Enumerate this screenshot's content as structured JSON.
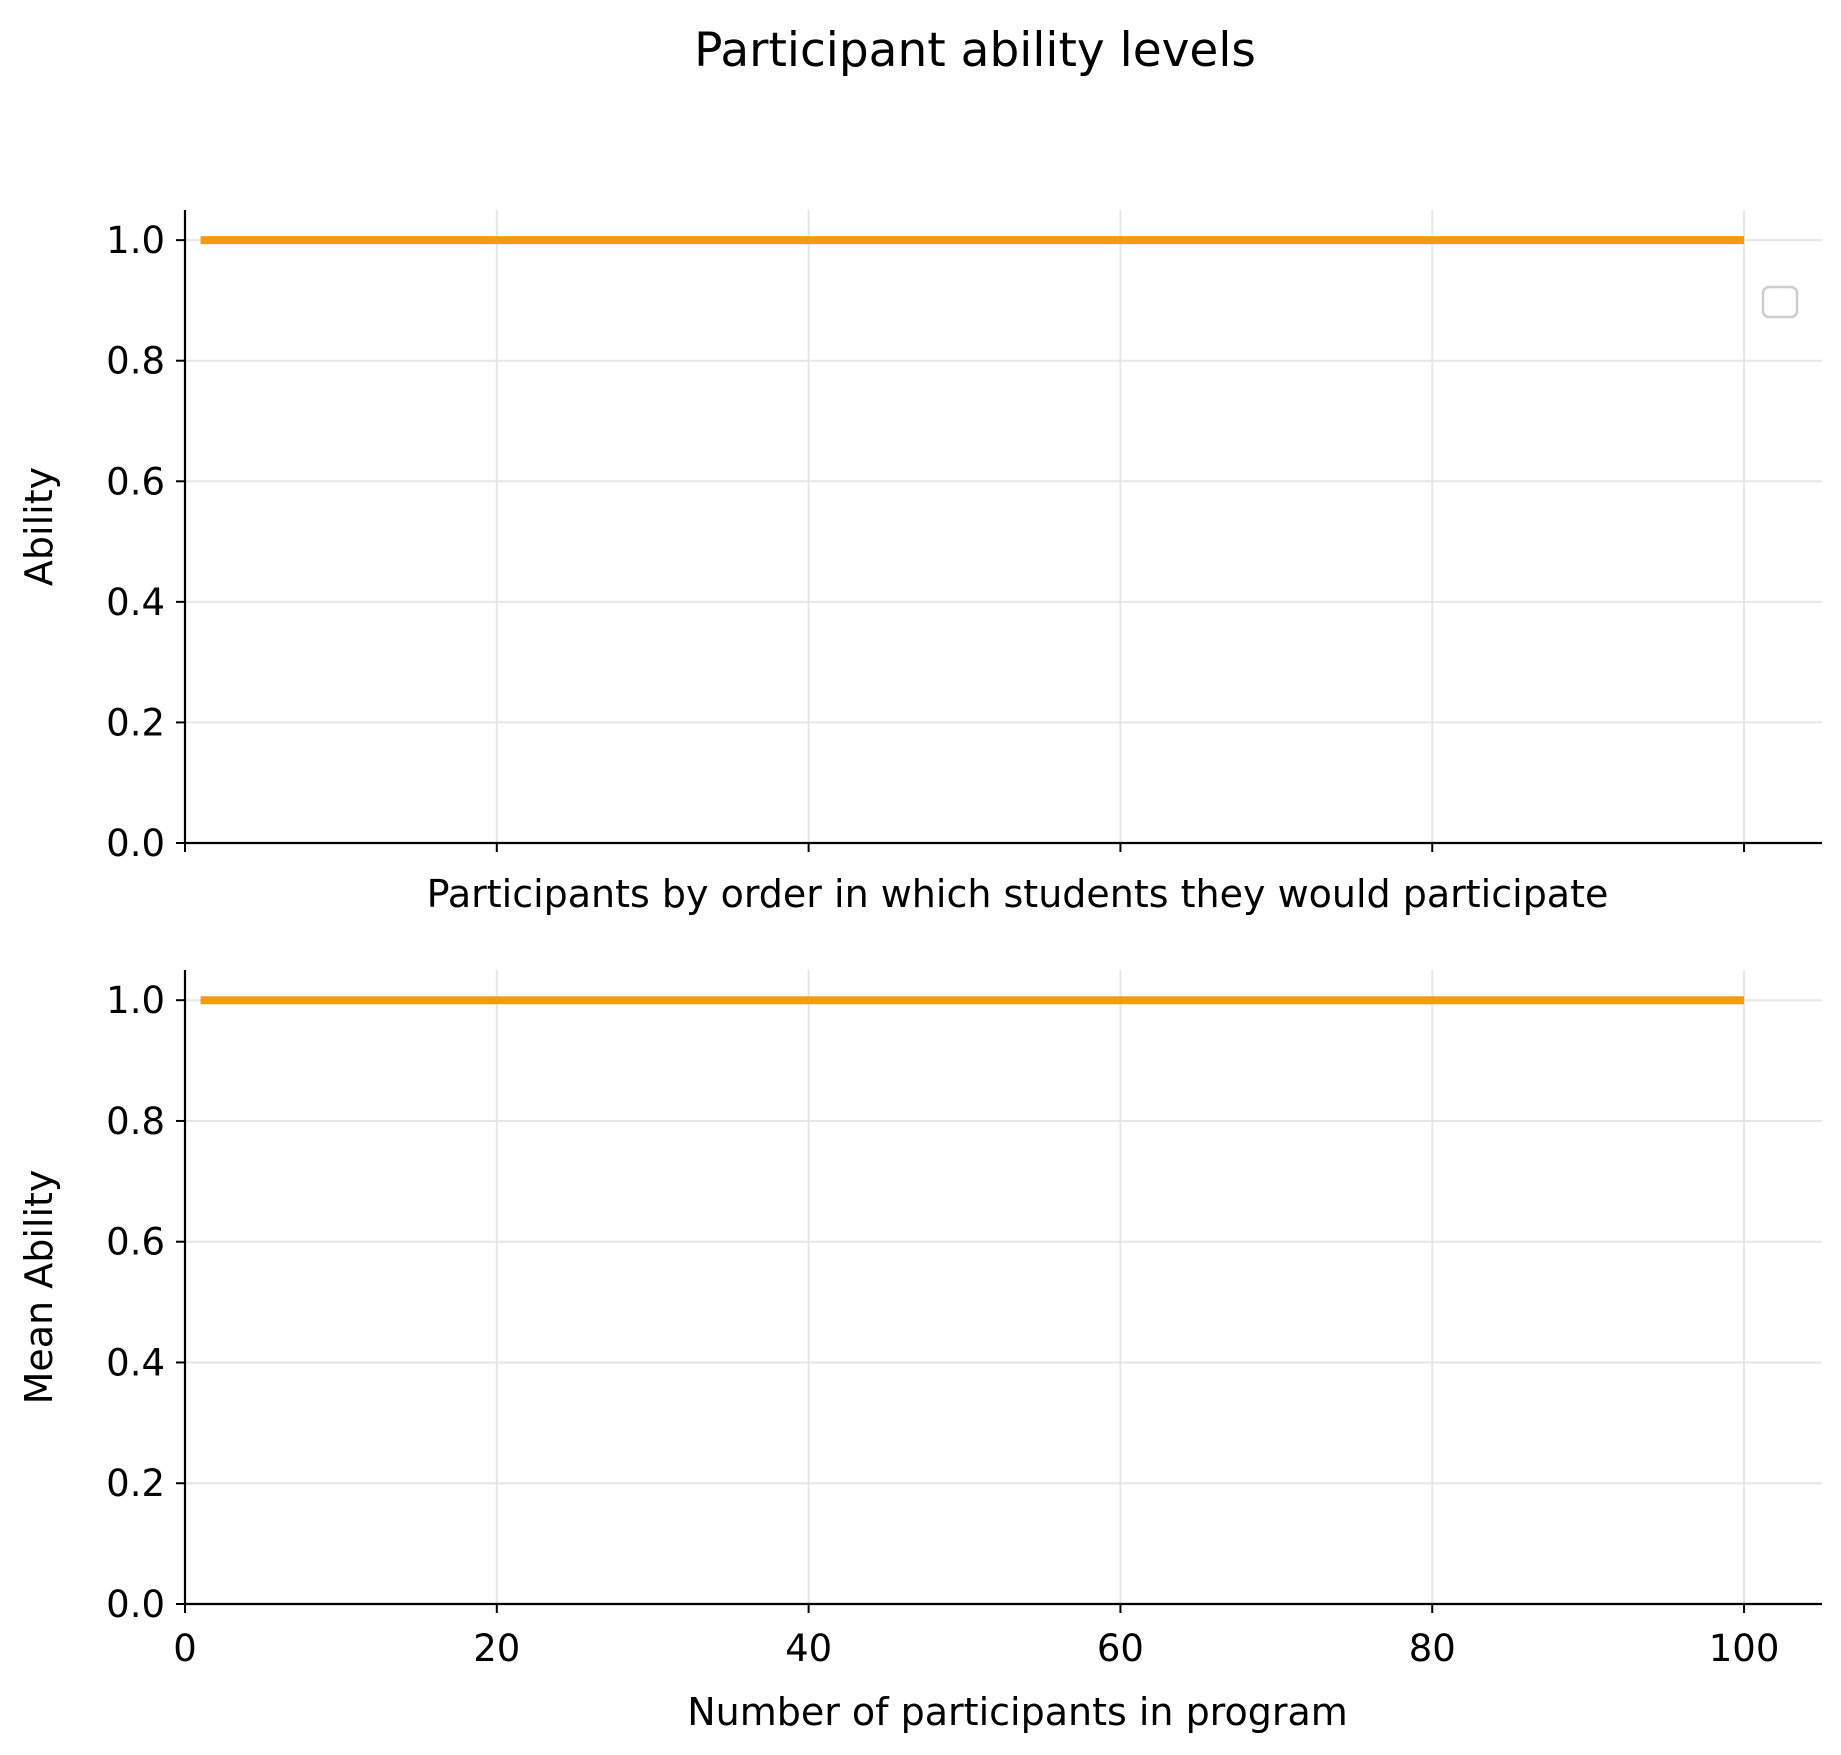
{
  "figure": {
    "title": "Participant ability levels"
  },
  "colors": {
    "series": "#f39c12",
    "axis": "#000000",
    "grid": "#e6e6e6",
    "legend_border": "#cccccc"
  },
  "chart_data": [
    {
      "type": "line",
      "title": "",
      "xlabel": "Participants by order in which students they would participate",
      "ylabel": "Ability",
      "xlim": [
        0,
        105
      ],
      "ylim": [
        0,
        1.05
      ],
      "xticks": [
        0,
        20,
        40,
        60,
        80,
        100
      ],
      "xtick_labels_visible": false,
      "yticks": [
        0.0,
        0.2,
        0.4,
        0.6,
        0.8,
        1.0
      ],
      "ytick_labels": [
        "0.0",
        "0.2",
        "0.4",
        "0.6",
        "0.8",
        "1.0"
      ],
      "grid": true,
      "legend": {
        "placement": "right",
        "entries": []
      },
      "series": [
        {
          "x": [
            1,
            100
          ],
          "y": [
            1.0,
            1.0
          ]
        }
      ]
    },
    {
      "type": "line",
      "title": "",
      "xlabel": "Number of participants in program",
      "ylabel": "Mean Ability",
      "xlim": [
        0,
        105
      ],
      "ylim": [
        0,
        1.05
      ],
      "xticks": [
        0,
        20,
        40,
        60,
        80,
        100
      ],
      "xtick_labels": [
        "0",
        "20",
        "40",
        "60",
        "80",
        "100"
      ],
      "xtick_labels_visible": true,
      "yticks": [
        0.0,
        0.2,
        0.4,
        0.6,
        0.8,
        1.0
      ],
      "ytick_labels": [
        "0.0",
        "0.2",
        "0.4",
        "0.6",
        "0.8",
        "1.0"
      ],
      "grid": true,
      "series": [
        {
          "x": [
            1,
            100
          ],
          "y": [
            1.0,
            1.0
          ]
        }
      ]
    }
  ]
}
